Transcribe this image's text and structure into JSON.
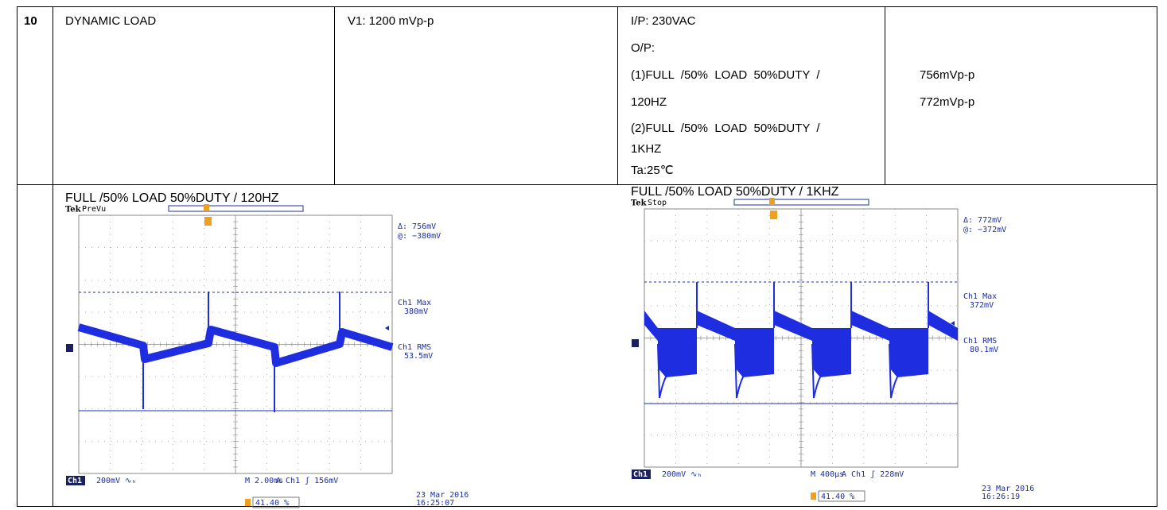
{
  "table": {
    "rows": [
      {
        "number": "10",
        "item": "DYNAMIC LOAD",
        "spec": "V1: 1200 mVp-p",
        "condition": [
          "I/P: 230VAC",
          "O/P:",
          "(1)FULL  /50%  LOAD  50%DUTY  /",
          "120HZ",
          "(2)FULL  /50%  LOAD  50%DUTY  /",
          "1KHZ",
          "Ta:25℃"
        ],
        "result": [
          "756mVp-p",
          "772mVp-p"
        ]
      }
    ]
  },
  "scopes": [
    {
      "caption": "FULL /50% LOAD 50%DUTY / 120HZ",
      "brand": "Tek",
      "status": "PreVu",
      "delta": "Δ:  756mV",
      "at": "@: −380mV",
      "max_label": "Ch1 Max",
      "max": "380mV",
      "rms_label": "Ch1 RMS",
      "rms": "53.5mV",
      "channel": "Ch1",
      "scale": "200mV ∿ₕ",
      "timebase": "M 2.00ms",
      "trigger": "A  Ch1  ʃ   156mV",
      "date": "23 Mar 2016",
      "time": "16:25:07",
      "trigger_pos": "41.40 %"
    },
    {
      "caption": "FULL /50% LOAD 50%DUTY / 1KHZ",
      "brand": "Tek",
      "status": "Stop",
      "delta": "Δ:  772mV",
      "at": "@: −372mV",
      "max_label": "Ch1 Max",
      "max": "372mV",
      "rms_label": "Ch1 RMS",
      "rms": "80.1mV",
      "channel": "Ch1",
      "scale": "200mV ∿ₕ",
      "timebase": "M 400μs",
      "trigger": "A  Ch1  ʃ   228mV",
      "date": "23 Mar 2016",
      "time": "16:26:19",
      "trigger_pos": "41.40 %"
    }
  ]
}
